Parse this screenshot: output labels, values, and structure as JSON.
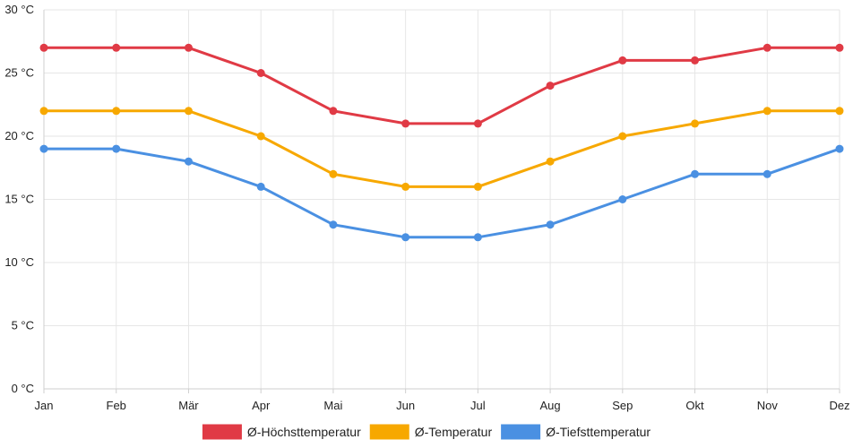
{
  "chart_data": {
    "type": "line",
    "title": "",
    "xlabel": "",
    "ylabel": "",
    "y_unit": "°C",
    "ylim": [
      0,
      30
    ],
    "y_ticks": [
      "0 °C",
      "5 °C",
      "10 °C",
      "15 °C",
      "20 °C",
      "25 °C",
      "30 °C"
    ],
    "y_tick_values": [
      0,
      5,
      10,
      15,
      20,
      25,
      30
    ],
    "grid": true,
    "legend_position": "bottom-center",
    "categories": [
      "Jan",
      "Feb",
      "Mär",
      "Apr",
      "Mai",
      "Jun",
      "Jul",
      "Aug",
      "Sep",
      "Okt",
      "Nov",
      "Dez"
    ],
    "series": [
      {
        "name": "Ø-Höchsttemperatur",
        "color": "#e03a45",
        "values": [
          27,
          27,
          27,
          25,
          22,
          21,
          21,
          24,
          26,
          26,
          27,
          27
        ]
      },
      {
        "name": "Ø-Temperatur",
        "color": "#f7a800",
        "values": [
          22,
          22,
          22,
          20,
          17,
          16,
          16,
          18,
          20,
          21,
          22,
          22
        ]
      },
      {
        "name": "Ø-Tiefsttemperatur",
        "color": "#4a90e2",
        "values": [
          19,
          19,
          18,
          16,
          13,
          12,
          12,
          13,
          15,
          17,
          17,
          19
        ]
      }
    ]
  }
}
